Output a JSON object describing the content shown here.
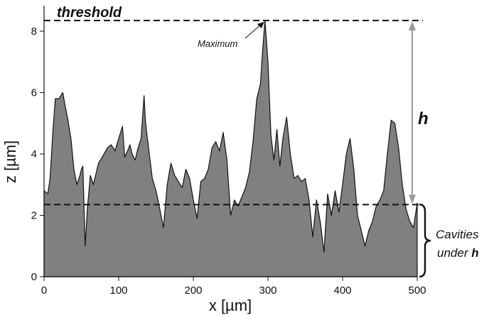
{
  "chart_data": {
    "type": "area",
    "title": "",
    "xlabel": "x [µm]",
    "ylabel": "z [µm]",
    "xlim": [
      0,
      500
    ],
    "ylim": [
      0,
      8.6
    ],
    "xticks": [
      0,
      100,
      200,
      300,
      400,
      500
    ],
    "yticks": [
      0,
      2,
      4,
      6,
      8
    ],
    "grid": false,
    "legend": "none",
    "fill_color": "#808080",
    "line_color": "#111111",
    "threshold_value": 8.35,
    "mean_level": 2.35,
    "annotations": {
      "threshold": "threshold",
      "maximum": "Maximum",
      "h": "h",
      "cavities": "Cavities",
      "under": "under",
      "under_bold": "h"
    },
    "series": [
      {
        "x": [
          0,
          5,
          8,
          12,
          15,
          20,
          25,
          28,
          32,
          36,
          40,
          44,
          48,
          50,
          52,
          55,
          58,
          62,
          66,
          70,
          73,
          78,
          85,
          90,
          95,
          100,
          105,
          108,
          112,
          115,
          118,
          122,
          126,
          130,
          134,
          136,
          140,
          145,
          150,
          155,
          160,
          165,
          170,
          175,
          180,
          185,
          190,
          195,
          200,
          205,
          210,
          215,
          220,
          225,
          230,
          235,
          240,
          245,
          250,
          255,
          260,
          265,
          270,
          275,
          280,
          285,
          290,
          293,
          296,
          300,
          304,
          308,
          312,
          316,
          320,
          325,
          330,
          335,
          340,
          345,
          350,
          355,
          360,
          365,
          370,
          375,
          380,
          385,
          390,
          395,
          400,
          405,
          410,
          415,
          420,
          425,
          430,
          435,
          440,
          445,
          450,
          455,
          460,
          465,
          470,
          475,
          480,
          485,
          490,
          495,
          500
        ],
        "y": [
          2.8,
          2.7,
          3.2,
          4.8,
          5.8,
          5.8,
          6.0,
          5.6,
          5.1,
          4.5,
          3.5,
          3.0,
          3.3,
          3.5,
          3.6,
          1.0,
          2.2,
          3.3,
          3.0,
          3.4,
          3.7,
          3.9,
          4.2,
          4.3,
          4.1,
          4.5,
          4.9,
          3.9,
          4.1,
          4.3,
          4.0,
          3.8,
          4.2,
          4.5,
          5.9,
          5.0,
          4.2,
          3.2,
          2.8,
          2.2,
          1.6,
          3.0,
          3.7,
          3.3,
          3.1,
          2.9,
          3.5,
          3.2,
          2.5,
          1.9,
          3.1,
          3.2,
          3.5,
          4.2,
          4.4,
          4.1,
          4.7,
          3.8,
          2.0,
          2.5,
          2.3,
          2.6,
          2.9,
          3.4,
          4.4,
          5.8,
          6.3,
          7.4,
          8.35,
          7.0,
          4.6,
          3.8,
          4.8,
          3.6,
          4.5,
          5.2,
          4.0,
          3.2,
          3.3,
          3.1,
          3.2,
          2.5,
          1.3,
          2.5,
          1.8,
          0.8,
          2.7,
          2.0,
          2.8,
          2.1,
          3.0,
          4.0,
          4.5,
          3.5,
          2.0,
          1.5,
          1.0,
          1.5,
          1.8,
          2.3,
          2.5,
          2.8,
          4.0,
          5.1,
          5.0,
          4.2,
          3.0,
          2.2,
          1.8,
          1.6,
          2.4
        ]
      }
    ]
  }
}
